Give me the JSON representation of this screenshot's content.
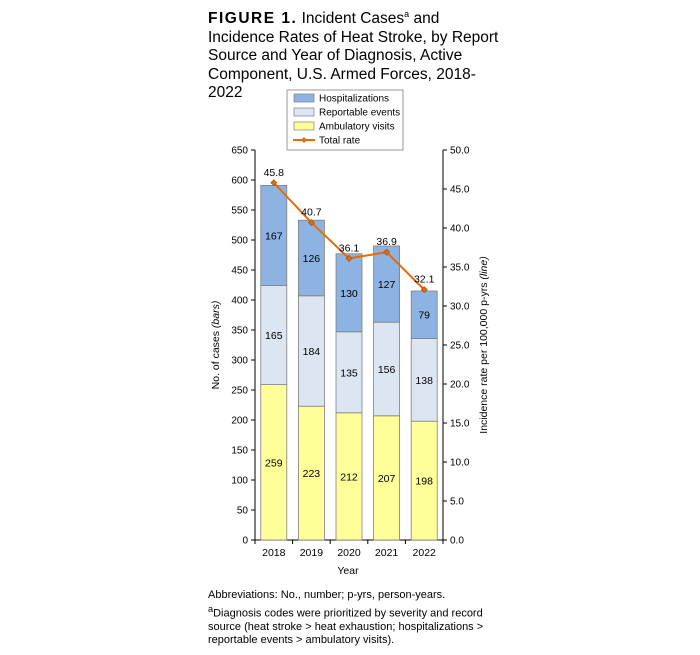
{
  "figure": {
    "label": "FIGURE 1.",
    "title_part1": "Incident Cases",
    "title_sup": "a",
    "title_part2": "and Incidence Rates of Heat Stroke, by Report Source and Year of Diagnosis, Active Component, U.S. Armed Forces, 2018-2022"
  },
  "footnotes": {
    "abbreviations": "Abbreviations: No., number; p-yrs, person-years.",
    "note_marker": "a",
    "note": "Diagnosis codes were prioritized by severity and record source (heat stroke > heat exhaustion; hospitalizations > reportable events > ambulatory visits)."
  },
  "chart_data": {
    "type": "bar",
    "stacked": true,
    "categories": [
      "2018",
      "2019",
      "2020",
      "2021",
      "2022"
    ],
    "series": [
      {
        "name": "Ambulatory visits",
        "values": [
          259,
          223,
          212,
          207,
          198
        ],
        "color": "#ffff99"
      },
      {
        "name": "Reportable events",
        "values": [
          165,
          184,
          135,
          156,
          138
        ],
        "color": "#dce6f2"
      },
      {
        "name": "Hospitalizations",
        "values": [
          167,
          126,
          130,
          127,
          79
        ],
        "color": "#8db3e2"
      }
    ],
    "line_series": {
      "name": "Total rate",
      "values": [
        45.8,
        40.7,
        36.1,
        36.9,
        32.1
      ],
      "labels": [
        "45.8",
        "40.7",
        "36.1",
        "36.9",
        "32.1"
      ],
      "color": "#e46c0a"
    },
    "legend_order": [
      "Hospitalizations",
      "Reportable events",
      "Ambulatory visits",
      "Total rate"
    ],
    "xlabel": "Year",
    "ylabel_prefix": "No. of cases ",
    "ylabel_italic": "(bars)",
    "y2label_prefix": "Incidence rate per 100,000 p-yrs ",
    "y2label_italic": "(line)",
    "ylim": [
      0,
      650
    ],
    "yticks": [
      "0",
      "50",
      "100",
      "150",
      "200",
      "250",
      "300",
      "350",
      "400",
      "450",
      "500",
      "550",
      "600",
      "650"
    ],
    "y2lim": [
      0,
      50
    ],
    "y2ticks": [
      "0.0",
      "5.0",
      "10.0",
      "15.0",
      "20.0",
      "25.0",
      "30.0",
      "35.0",
      "40.0",
      "45.0",
      "50.0"
    ],
    "legend_position": "top-center"
  }
}
